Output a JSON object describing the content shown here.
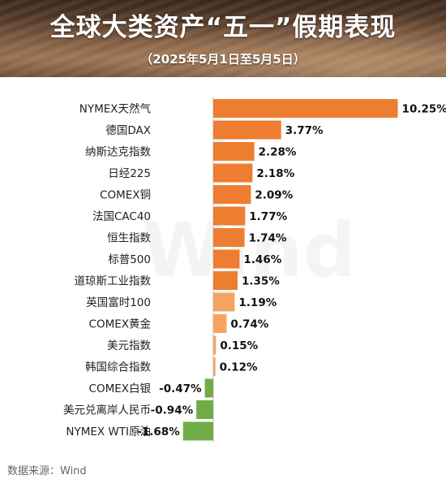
{
  "header": {
    "title": "全球大类资产“五一”假期表现",
    "subtitle": "（2025年5月1日至5月5日）"
  },
  "watermark": "Wind",
  "source": "数据来源：Wind",
  "colors": {
    "positive_dark": "#ED7D31",
    "positive_light": "#F4A460",
    "negative": "#70AD47"
  },
  "chart_data": {
    "type": "bar",
    "orientation": "horizontal",
    "title": "全球大类资产“五一”假期表现",
    "subtitle": "（2025年5月1日至5月5日）",
    "categories": [
      "NYMEX天然气",
      "德国DAX",
      "纳斯达克指数",
      "日经225",
      "COMEX铜",
      "法国CAC40",
      "恒生指数",
      "标普500",
      "道琼斯工业指数",
      "英国富时100",
      "COMEX黄金",
      "美元指数",
      "韩国综合指数",
      "COMEX白银",
      "美元兑离岸人民币",
      "NYMEX WTI原油"
    ],
    "values": [
      10.25,
      3.77,
      2.28,
      2.18,
      2.09,
      1.77,
      1.74,
      1.46,
      1.35,
      1.19,
      0.74,
      0.15,
      0.12,
      -0.47,
      -0.94,
      -1.68
    ],
    "labels": [
      "10.25%",
      "3.77%",
      "2.28%",
      "2.18%",
      "2.09%",
      "1.77%",
      "1.74%",
      "1.46%",
      "1.35%",
      "1.19%",
      "0.74%",
      "0.15%",
      "0.12%",
      "-0.47%",
      "-0.94%",
      "-1.68%"
    ],
    "grid": false,
    "legend": "none"
  }
}
